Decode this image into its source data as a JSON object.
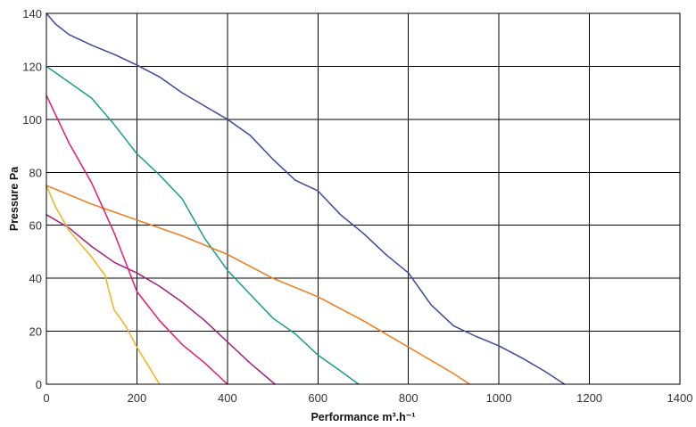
{
  "chart_data": {
    "type": "line",
    "xlabel": "Performance m³.h⁻¹",
    "ylabel": "Pressure Pa",
    "xlim": [
      0,
      1400
    ],
    "ylim": [
      0,
      140
    ],
    "x_ticks": [
      "0",
      "200",
      "400",
      "600",
      "800",
      "1000",
      "1200",
      "1400"
    ],
    "y_ticks": [
      "0",
      "20",
      "40",
      "60",
      "80",
      "100",
      "120",
      "140"
    ],
    "grid": true,
    "series": [
      {
        "color": "#3b4a9c",
        "points": [
          [
            0,
            140
          ],
          [
            20,
            136
          ],
          [
            50,
            132
          ],
          [
            100,
            128
          ],
          [
            150,
            124.5
          ],
          [
            200,
            120.5
          ],
          [
            250,
            116
          ],
          [
            300,
            110
          ],
          [
            350,
            105
          ],
          [
            400,
            100
          ],
          [
            450,
            94
          ],
          [
            500,
            85
          ],
          [
            550,
            77
          ],
          [
            600,
            73
          ],
          [
            650,
            64
          ],
          [
            700,
            57
          ],
          [
            750,
            49
          ],
          [
            800,
            42
          ],
          [
            850,
            30
          ],
          [
            900,
            22
          ],
          [
            950,
            18
          ],
          [
            1000,
            14.5
          ],
          [
            1050,
            10
          ],
          [
            1100,
            5
          ],
          [
            1145,
            0
          ]
        ]
      },
      {
        "color": "#1a9e8f",
        "points": [
          [
            0,
            120
          ],
          [
            50,
            114
          ],
          [
            100,
            108
          ],
          [
            150,
            98
          ],
          [
            200,
            87
          ],
          [
            250,
            79
          ],
          [
            300,
            70
          ],
          [
            350,
            55
          ],
          [
            400,
            43
          ],
          [
            450,
            34
          ],
          [
            500,
            25
          ],
          [
            550,
            19
          ],
          [
            600,
            11
          ],
          [
            650,
            5
          ],
          [
            690,
            0
          ]
        ]
      },
      {
        "color": "#f07a1a",
        "points": [
          [
            0,
            75
          ],
          [
            100,
            68
          ],
          [
            200,
            62
          ],
          [
            300,
            56
          ],
          [
            400,
            49
          ],
          [
            500,
            40
          ],
          [
            600,
            33
          ],
          [
            700,
            24
          ],
          [
            800,
            14
          ],
          [
            900,
            4
          ],
          [
            935,
            0
          ]
        ]
      },
      {
        "color": "#a0207e",
        "points": [
          [
            0,
            64
          ],
          [
            50,
            59
          ],
          [
            100,
            52
          ],
          [
            150,
            46
          ],
          [
            200,
            42
          ],
          [
            250,
            37
          ],
          [
            300,
            31
          ],
          [
            350,
            24
          ],
          [
            400,
            16
          ],
          [
            450,
            8
          ],
          [
            505,
            0
          ]
        ]
      },
      {
        "color": "#e8196e",
        "points": [
          [
            0,
            109
          ],
          [
            50,
            91
          ],
          [
            100,
            76
          ],
          [
            150,
            57
          ],
          [
            200,
            35
          ],
          [
            250,
            24
          ],
          [
            300,
            15
          ],
          [
            350,
            8
          ],
          [
            400,
            0
          ]
        ]
      },
      {
        "color": "#f5b21c",
        "points": [
          [
            0,
            75
          ],
          [
            20,
            67
          ],
          [
            50,
            58
          ],
          [
            100,
            48
          ],
          [
            130,
            41
          ],
          [
            140,
            34
          ],
          [
            150,
            28
          ],
          [
            175,
            22
          ],
          [
            200,
            14
          ],
          [
            225,
            7
          ],
          [
            250,
            0
          ]
        ]
      }
    ]
  }
}
